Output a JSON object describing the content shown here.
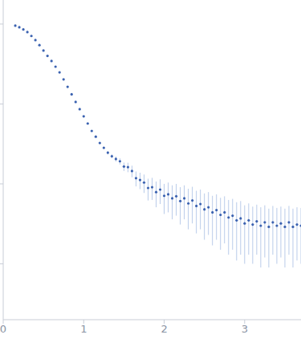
{
  "chart_data": {
    "type": "scatter",
    "log": "y",
    "grid": false,
    "tick_labels": "x",
    "marker": "circle",
    "color": "#3b62b0",
    "xlim": [
      0,
      3.7
    ],
    "xticks": [
      0,
      1,
      2,
      3
    ],
    "ylim": [
      0.0002,
      2
    ],
    "yticks": [
      0.001,
      0.01,
      0.1,
      1
    ],
    "x": [
      0.15,
      0.2,
      0.25,
      0.3,
      0.35,
      0.4,
      0.45,
      0.5,
      0.55,
      0.6,
      0.65,
      0.7,
      0.75,
      0.8,
      0.85,
      0.9,
      0.95,
      1.0,
      1.05,
      1.1,
      1.15,
      1.2,
      1.25,
      1.3,
      1.35,
      1.4,
      1.45,
      1.5,
      1.55,
      1.6,
      1.65,
      1.7,
      1.75,
      1.8,
      1.85,
      1.9,
      1.95,
      2.0,
      2.05,
      2.1,
      2.15,
      2.2,
      2.25,
      2.3,
      2.35,
      2.4,
      2.45,
      2.5,
      2.55,
      2.6,
      2.65,
      2.7,
      2.75,
      2.8,
      2.85,
      2.9,
      2.95,
      3.0,
      3.05,
      3.1,
      3.15,
      3.2,
      3.25,
      3.3,
      3.35,
      3.4,
      3.45,
      3.5,
      3.55,
      3.6,
      3.65,
      3.7
    ],
    "values": [
      0.955,
      0.912,
      0.855,
      0.794,
      0.71,
      0.63,
      0.545,
      0.466,
      0.4,
      0.345,
      0.293,
      0.249,
      0.203,
      0.164,
      0.132,
      0.106,
      0.086,
      0.07,
      0.057,
      0.046,
      0.039,
      0.0325,
      0.0283,
      0.0246,
      0.0222,
      0.0205,
      0.0192,
      0.0165,
      0.0162,
      0.0145,
      0.0118,
      0.0112,
      0.0104,
      0.0089,
      0.0091,
      0.0079,
      0.0085,
      0.0071,
      0.0074,
      0.0066,
      0.007,
      0.0061,
      0.0066,
      0.0057,
      0.0062,
      0.0053,
      0.0056,
      0.0048,
      0.0051,
      0.0044,
      0.0047,
      0.0041,
      0.0044,
      0.0038,
      0.004,
      0.0035,
      0.0037,
      0.0032,
      0.0035,
      0.0031,
      0.0034,
      0.003,
      0.0033,
      0.0029,
      0.0033,
      0.003,
      0.0032,
      0.0029,
      0.0033,
      0.0029,
      0.0031,
      0.003
    ],
    "errors": [
      0.005,
      0.004,
      0.004,
      0.004,
      0.003,
      0.003,
      0.003,
      0.002,
      0.002,
      0.002,
      0.002,
      0.002,
      0.001,
      0.001,
      0.001,
      0.001,
      0.001,
      0.001,
      0.001,
      0.001,
      0.001,
      0.001,
      0.001,
      0.0012,
      0.0013,
      0.0015,
      0.0017,
      0.002,
      0.0022,
      0.0024,
      0.0025,
      0.0026,
      0.0027,
      0.0027,
      0.0028,
      0.0028,
      0.0029,
      0.0029,
      0.003,
      0.003,
      0.003,
      0.003,
      0.003,
      0.003,
      0.003,
      0.0029,
      0.0029,
      0.0028,
      0.0028,
      0.0027,
      0.0027,
      0.0026,
      0.0026,
      0.0025,
      0.0025,
      0.0024,
      0.0024,
      0.0022,
      0.0022,
      0.0021,
      0.0021,
      0.0021,
      0.0021,
      0.002,
      0.002,
      0.002,
      0.002,
      0.002,
      0.002,
      0.002,
      0.002,
      0.002
    ]
  }
}
